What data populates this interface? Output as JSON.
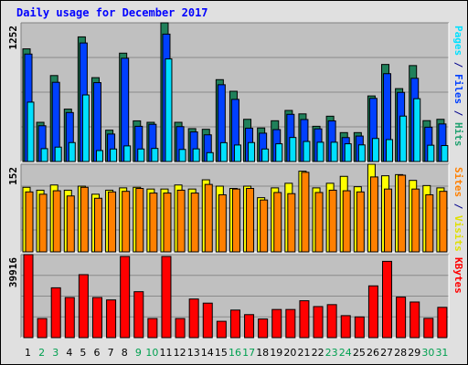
{
  "title": "Daily usage for December 2017",
  "chart_data": [
    {
      "type": "bar",
      "categories": [
        "1",
        "2",
        "3",
        "4",
        "5",
        "6",
        "7",
        "8",
        "9",
        "10",
        "11",
        "12",
        "13",
        "14",
        "15",
        "16",
        "17",
        "18",
        "19",
        "20",
        "21",
        "22",
        "23",
        "24",
        "25",
        "26",
        "27",
        "28",
        "29",
        "30",
        "31"
      ],
      "weekend_days": [
        "2",
        "3",
        "9",
        "10",
        "16",
        "17",
        "23",
        "24",
        "30",
        "31"
      ],
      "ylim": [
        0,
        1252
      ],
      "max_label": "1252",
      "ylabel_parts": [
        {
          "text": "Pages",
          "color": "#00e0ff"
        },
        {
          "text": " / ",
          "color": "#00008b"
        },
        {
          "text": "Files",
          "color": "#0040ff"
        },
        {
          "text": " / ",
          "color": "#00008b"
        },
        {
          "text": "Hits",
          "color": "#20a070"
        }
      ],
      "series": [
        {
          "name": "Hits",
          "color": "#20805a",
          "values": [
            1017,
            354,
            776,
            473,
            1125,
            757,
            283,
            978,
            367,
            354,
            1252,
            354,
            297,
            291,
            739,
            634,
            381,
            303,
            368,
            461,
            430,
            318,
            409,
            261,
            261,
            592,
            876,
            658,
            866,
            369,
            381
          ]
        },
        {
          "name": "Files",
          "color": "#0040ff",
          "values": [
            970,
            323,
            715,
            442,
            1070,
            712,
            248,
            932,
            318,
            336,
            1150,
            315,
            267,
            241,
            693,
            561,
            301,
            256,
            288,
            426,
            379,
            295,
            367,
            216,
            230,
            570,
            793,
            624,
            751,
            310,
            339
          ]
        },
        {
          "name": "Pages",
          "color": "#00e0ff",
          "values": [
            536,
            116,
            130,
            171,
            601,
            99,
            113,
            141,
            113,
            118,
            926,
            109,
            114,
            80,
            170,
            149,
            171,
            113,
            160,
            217,
            181,
            174,
            174,
            160,
            150,
            208,
            198,
            410,
            567,
            147,
            144
          ]
        }
      ]
    },
    {
      "type": "bar",
      "categories": [
        "1",
        "2",
        "3",
        "4",
        "5",
        "6",
        "7",
        "8",
        "9",
        "10",
        "11",
        "12",
        "13",
        "14",
        "15",
        "16",
        "17",
        "18",
        "19",
        "20",
        "21",
        "22",
        "23",
        "24",
        "25",
        "26",
        "27",
        "28",
        "29",
        "30",
        "31"
      ],
      "ylim": [
        0,
        152
      ],
      "max_label": "152",
      "ylabel_parts": [
        {
          "text": "Sites",
          "color": "#ff8000"
        },
        {
          "text": " / ",
          "color": "#00008b"
        },
        {
          "text": "Visits",
          "color": "#e0e000"
        }
      ],
      "series": [
        {
          "name": "Visits",
          "color": "#ffff00",
          "values": [
            112,
            107,
            116,
            107,
            114,
            100,
            107,
            111,
            112,
            109,
            109,
            116,
            109,
            125,
            114,
            110,
            114,
            94,
            111,
            119,
            140,
            111,
            119,
            131,
            113,
            152,
            132,
            134,
            124,
            115,
            111
          ]
        },
        {
          "name": "Sites",
          "color": "#ff8000",
          "values": [
            104,
            100,
            106,
            97,
            112,
            93,
            104,
            105,
            110,
            102,
            102,
            107,
            102,
            117,
            99,
            109,
            110,
            90,
            103,
            101,
            138,
            103,
            107,
            106,
            104,
            130,
            109,
            133,
            109,
            99,
            105
          ]
        }
      ]
    },
    {
      "type": "bar",
      "categories": [
        "1",
        "2",
        "3",
        "4",
        "5",
        "6",
        "7",
        "8",
        "9",
        "10",
        "11",
        "12",
        "13",
        "14",
        "15",
        "16",
        "17",
        "18",
        "19",
        "20",
        "21",
        "22",
        "23",
        "24",
        "25",
        "26",
        "27",
        "28",
        "29",
        "30",
        "31"
      ],
      "ylim": [
        0,
        39916
      ],
      "max_label": "39916",
      "ylabel_parts": [
        {
          "text": "KBytes",
          "color": "#ff0000"
        }
      ],
      "series": [
        {
          "name": "KBytes",
          "color": "#ff0000",
          "values": [
            39916,
            9180,
            23950,
            19280,
            30270,
            19280,
            18120,
            39020,
            22080,
            9180,
            39020,
            9180,
            18560,
            16580,
            7850,
            13240,
            11060,
            8960,
            13530,
            13530,
            17730,
            14930,
            15860,
            10570,
            9960,
            24880,
            36670,
            19470,
            17120,
            9270,
            14560
          ]
        }
      ]
    }
  ]
}
